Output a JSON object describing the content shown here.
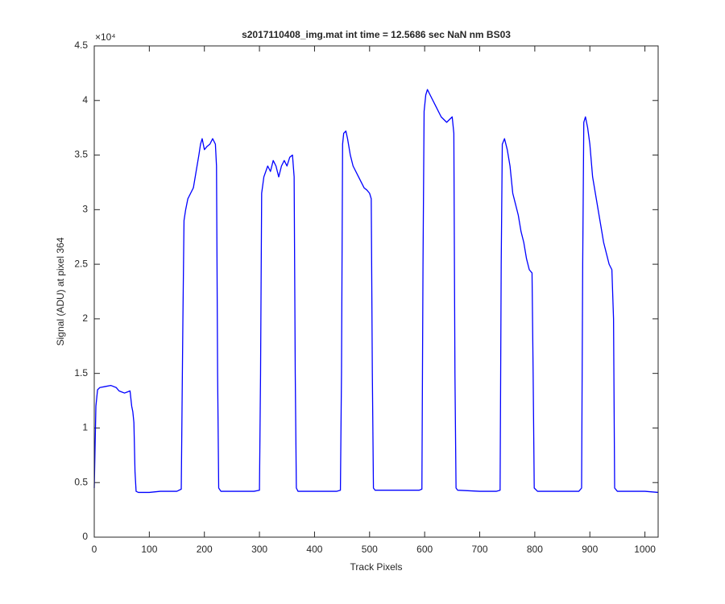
{
  "chart_data": {
    "type": "line",
    "title": "s2017110408_img.mat int time = 12.5686 sec  NaN nm BS03",
    "x_label": "Track Pixels",
    "y_label": "Signal (ADU) at pixel 364",
    "y_exponent_label": "×10⁴",
    "xlim": [
      0,
      1024
    ],
    "ylim": [
      0,
      4.5
    ],
    "xticks": [
      0,
      100,
      200,
      300,
      400,
      500,
      600,
      700,
      800,
      900,
      1000
    ],
    "yticks": [
      0,
      0.5,
      1,
      1.5,
      2,
      2.5,
      3,
      3.5,
      4,
      4.5
    ],
    "grid": false,
    "box": true,
    "series": [
      {
        "name": "signal",
        "color": "#0000ff",
        "x": [
          0,
          3,
          6,
          10,
          20,
          30,
          40,
          45,
          50,
          55,
          60,
          65,
          68,
          70,
          72,
          74,
          76,
          80,
          100,
          120,
          150,
          158,
          161,
          163,
          166,
          170,
          175,
          180,
          185,
          190,
          193,
          196,
          200,
          205,
          210,
          215,
          220,
          222,
          224,
          226,
          230,
          260,
          290,
          300,
          302,
          304,
          308,
          315,
          320,
          325,
          330,
          335,
          340,
          345,
          350,
          355,
          360,
          363,
          365,
          367,
          370,
          400,
          440,
          447,
          449,
          451,
          453,
          457,
          460,
          465,
          470,
          480,
          485,
          490,
          495,
          500,
          503,
          505,
          507,
          510,
          550,
          590,
          595,
          597,
          599,
          602,
          605,
          610,
          620,
          630,
          640,
          650,
          653,
          655,
          657,
          660,
          700,
          730,
          737,
          739,
          741,
          745,
          750,
          755,
          760,
          765,
          770,
          775,
          780,
          785,
          790,
          795,
          797,
          799,
          805,
          840,
          880,
          885,
          887,
          889,
          892,
          896,
          900,
          905,
          910,
          915,
          920,
          925,
          930,
          935,
          940,
          943,
          945,
          950,
          1000,
          1024
        ],
        "values": [
          0.45,
          1.2,
          1.35,
          1.37,
          1.38,
          1.39,
          1.37,
          1.34,
          1.33,
          1.32,
          1.33,
          1.34,
          1.2,
          1.15,
          1.05,
          0.6,
          0.42,
          0.41,
          0.41,
          0.42,
          0.42,
          0.44,
          2.0,
          2.9,
          3.0,
          3.1,
          3.15,
          3.2,
          3.35,
          3.5,
          3.6,
          3.65,
          3.55,
          3.58,
          3.6,
          3.65,
          3.6,
          3.4,
          1.5,
          0.45,
          0.42,
          0.42,
          0.42,
          0.43,
          1.5,
          3.15,
          3.3,
          3.4,
          3.35,
          3.45,
          3.4,
          3.3,
          3.4,
          3.45,
          3.4,
          3.48,
          3.5,
          3.3,
          1.5,
          0.45,
          0.42,
          0.42,
          0.42,
          0.43,
          1.5,
          3.6,
          3.7,
          3.72,
          3.65,
          3.5,
          3.4,
          3.3,
          3.25,
          3.2,
          3.18,
          3.15,
          3.1,
          1.5,
          0.45,
          0.43,
          0.43,
          0.43,
          0.44,
          2.5,
          3.9,
          4.05,
          4.1,
          4.05,
          3.95,
          3.85,
          3.8,
          3.85,
          3.7,
          1.5,
          0.45,
          0.43,
          0.42,
          0.42,
          0.43,
          2.5,
          3.6,
          3.65,
          3.55,
          3.4,
          3.15,
          3.05,
          2.95,
          2.8,
          2.7,
          2.55,
          2.45,
          2.42,
          1.5,
          0.45,
          0.42,
          0.42,
          0.42,
          0.45,
          2.5,
          3.8,
          3.85,
          3.75,
          3.6,
          3.3,
          3.15,
          3.0,
          2.85,
          2.7,
          2.6,
          2.5,
          2.45,
          2.0,
          0.45,
          0.42,
          0.42,
          0.41
        ]
      }
    ]
  }
}
